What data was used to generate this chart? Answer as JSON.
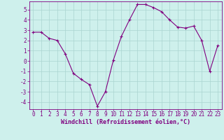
{
  "x": [
    0,
    1,
    2,
    3,
    4,
    5,
    6,
    7,
    8,
    9,
    10,
    11,
    12,
    13,
    14,
    15,
    16,
    17,
    18,
    19,
    20,
    21,
    22,
    23
  ],
  "y": [
    2.8,
    2.8,
    2.2,
    2.0,
    0.7,
    -1.2,
    -1.8,
    -2.3,
    -4.4,
    -3.0,
    0.1,
    2.4,
    4.0,
    5.5,
    5.5,
    5.2,
    4.8,
    4.0,
    3.3,
    3.2,
    3.4,
    2.0,
    -1.0,
    1.5
  ],
  "line_color": "#800080",
  "marker": "+",
  "marker_size": 3,
  "background_color": "#cef0ec",
  "grid_color": "#aad4d0",
  "yticks": [
    5,
    4,
    3,
    2,
    1,
    0,
    -1,
    -2,
    -3,
    -4
  ],
  "xlabel": "Windchill (Refroidissement éolien,°C)",
  "xlabel_color": "#800080",
  "xlim": [
    -0.5,
    23.5
  ],
  "ylim": [
    -4.7,
    5.8
  ],
  "tick_label_color": "#800080",
  "border_color": "#800080",
  "tick_font_size": 5.5,
  "xlabel_font_size": 6.0,
  "line_width": 0.8,
  "marker_edge_width": 0.8
}
